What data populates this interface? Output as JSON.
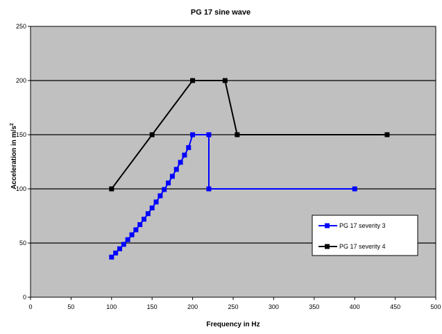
{
  "chart_data": {
    "type": "line",
    "title": "PG 17 sine wave",
    "xlabel": "Frequency in Hz",
    "ylabel_prefix": "Acceleration in m/s",
    "ylabel_sup": "2",
    "xlim": [
      0,
      500
    ],
    "ylim": [
      0,
      250
    ],
    "xticks": [
      "0",
      "50",
      "100",
      "150",
      "200",
      "250",
      "300",
      "350",
      "400",
      "450",
      "500"
    ],
    "yticks": [
      "0",
      "50",
      "100",
      "150",
      "200",
      "250"
    ],
    "grid": "horizontal",
    "plot_background": "#c0c0c0",
    "legend_position": "lower-right",
    "series": [
      {
        "name": "PG 17 severity 3",
        "color": "#0000ff",
        "marker": "square",
        "x": [
          100,
          105,
          110,
          115,
          120,
          125,
          130,
          135,
          140,
          145,
          150,
          155,
          160,
          165,
          170,
          175,
          180,
          185,
          190,
          195,
          200,
          220,
          220,
          400
        ],
        "y": [
          37,
          40.8,
          44.7,
          48.8,
          53.1,
          57.6,
          62.2,
          67.0,
          72.0,
          77.1,
          82.4,
          87.9,
          93.6,
          99.4,
          105.4,
          111.6,
          118.0,
          124.5,
          131.2,
          138.1,
          150,
          150,
          100,
          100
        ]
      },
      {
        "name": "PG 17 severity 4",
        "color": "#000000",
        "marker": "square",
        "x": [
          100,
          150,
          200,
          240,
          255,
          440
        ],
        "y": [
          100,
          150,
          200,
          200,
          150,
          150
        ]
      }
    ]
  }
}
